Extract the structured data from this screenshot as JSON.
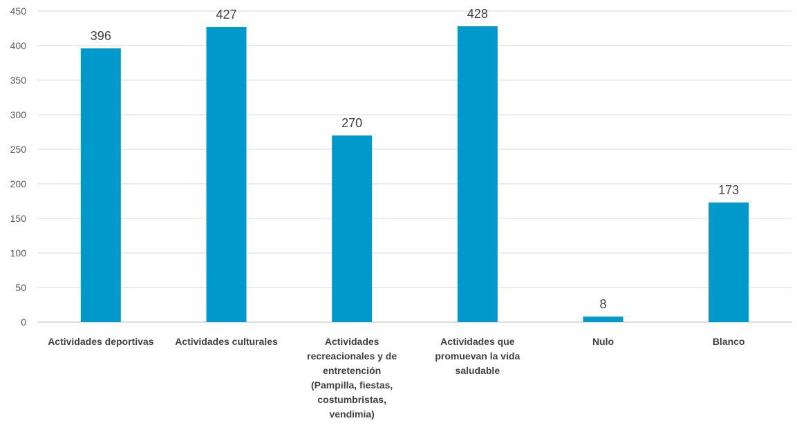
{
  "chart_data": {
    "type": "bar",
    "categories": [
      [
        "Actividades deportivas"
      ],
      [
        "Actividades culturales"
      ],
      [
        "Actividades",
        "recreacionales y de",
        "entretención",
        "(Pampilla, fiestas,",
        "costumbristas,",
        "vendimia)"
      ],
      [
        "Actividades que",
        "promuevan la vida",
        "saludable"
      ],
      [
        "Nulo"
      ],
      [
        "Blanco"
      ]
    ],
    "values": [
      396,
      427,
      270,
      428,
      8,
      173
    ],
    "data_labels": [
      "396",
      "427",
      "270",
      "428",
      "8",
      "173"
    ],
    "y_ticks": [
      "0",
      "50",
      "100",
      "150",
      "200",
      "250",
      "300",
      "350",
      "400",
      "450"
    ],
    "ylim": [
      0,
      450
    ],
    "grid": true,
    "legend": "none",
    "bar_color": "#0099cc",
    "title": "",
    "xlabel": "",
    "ylabel": ""
  }
}
